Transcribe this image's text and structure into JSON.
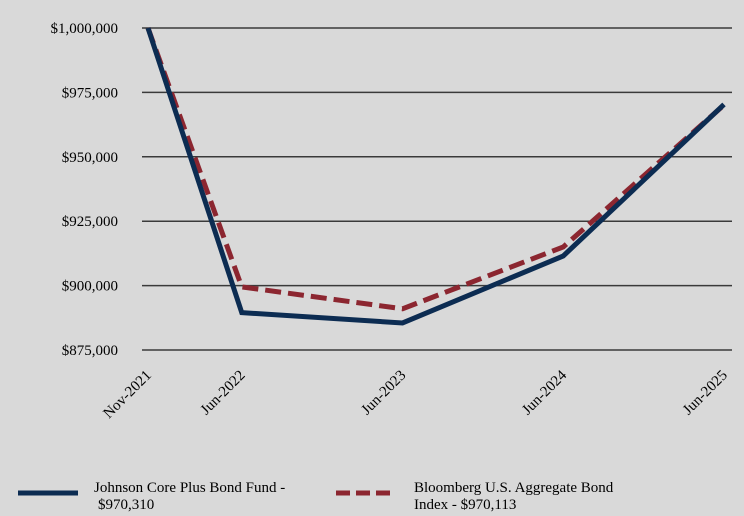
{
  "chart_data": {
    "type": "line",
    "categories": [
      "Nov-2021",
      "Jun-2022",
      "Jun-2023",
      "Jun-2024",
      "Jun-2025"
    ],
    "x_positions": [
      0,
      7,
      19,
      31,
      43
    ],
    "ylim": [
      875000,
      1000000
    ],
    "y_ticks": [
      875000,
      900000,
      925000,
      950000,
      975000,
      1000000
    ],
    "y_tick_labels": [
      "$875,000",
      "$900,000",
      "$925,000",
      "$950,000",
      "$975,000",
      "$1,000,000"
    ],
    "grid": true,
    "legend_position": "bottom",
    "series": [
      {
        "name": "Johnson Core Plus Bond Fund - $970,310",
        "label_line1": "Johnson Core Plus Bond Fund -",
        "label_line2": "$970,310",
        "values": [
          1000000,
          889500,
          885500,
          911500,
          970310
        ],
        "color": "#0c2c52",
        "style": "solid"
      },
      {
        "name": "Bloomberg U.S. Aggregate Bond Index - $970,113",
        "label_line1": "Bloomberg U.S. Aggregate Bond",
        "label_line2": "Index - $970,113",
        "values": [
          1000000,
          899500,
          891000,
          915000,
          970113
        ],
        "color": "#8c2630",
        "style": "dashed"
      }
    ]
  }
}
